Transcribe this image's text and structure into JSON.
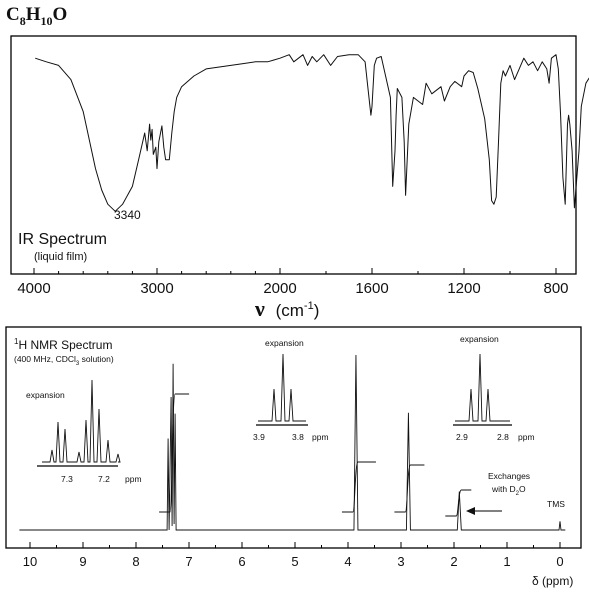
{
  "formula": {
    "base_c": "C",
    "n_c": "8",
    "base_h": "H",
    "n_h": "10",
    "base_o": "O"
  },
  "chart_data": [
    {
      "type": "line",
      "title": "IR Spectrum",
      "subtitle": "(liquid film)",
      "xlabel_symbol": "ν",
      "xlabel_unit": "(cm",
      "xlabel_exp": "-1",
      "xlabel_close": ")",
      "xlim": [
        4000,
        600
      ],
      "x_ticks": [
        4000,
        3000,
        2000,
        1600,
        1200,
        800
      ],
      "annotation": "3340",
      "grid": false,
      "x": [
        3990,
        3900,
        3800,
        3700,
        3600,
        3500,
        3450,
        3400,
        3340,
        3280,
        3200,
        3150,
        3100,
        3080,
        3060,
        3050,
        3040,
        3030,
        3010,
        3000,
        2985,
        2960,
        2945,
        2930,
        2900,
        2880,
        2860,
        2840,
        2800,
        2700,
        2600,
        2500,
        2400,
        2300,
        2200,
        2100,
        2050,
        2000,
        1960,
        1940,
        1900,
        1880,
        1860,
        1840,
        1810,
        1780,
        1750,
        1700,
        1660,
        1630,
        1620,
        1605,
        1600,
        1590,
        1580,
        1560,
        1520,
        1510,
        1500,
        1495,
        1490,
        1470,
        1460,
        1454,
        1445,
        1440,
        1420,
        1380,
        1365,
        1340,
        1300,
        1285,
        1260,
        1240,
        1210,
        1200,
        1180,
        1160,
        1140,
        1110,
        1090,
        1080,
        1070,
        1060,
        1050,
        1040,
        1030,
        1020,
        1000,
        980,
        960,
        940,
        920,
        900,
        880,
        860,
        840,
        830,
        820,
        800,
        790,
        780,
        770,
        760,
        750,
        745,
        740,
        730,
        720,
        700,
        690,
        670,
        650,
        620
      ],
      "y": [
        92,
        90,
        88,
        80,
        62,
        30,
        18,
        10,
        6,
        10,
        20,
        35,
        50,
        40,
        55,
        46,
        52,
        38,
        42,
        30,
        45,
        54,
        42,
        35,
        35,
        50,
        62,
        70,
        76,
        82,
        86,
        87,
        88,
        89,
        90,
        90,
        91,
        92,
        94,
        90,
        94,
        88,
        93,
        90,
        94,
        88,
        93,
        94,
        94,
        90,
        78,
        60,
        65,
        88,
        92,
        93,
        70,
        20,
        40,
        60,
        75,
        70,
        45,
        15,
        40,
        55,
        70,
        66,
        78,
        72,
        76,
        68,
        76,
        79,
        76,
        82,
        85,
        84,
        75,
        58,
        35,
        12,
        10,
        14,
        45,
        78,
        85,
        82,
        88,
        80,
        86,
        92,
        88,
        90,
        85,
        90,
        86,
        78,
        92,
        94,
        86,
        60,
        25,
        10,
        55,
        60,
        55,
        40,
        8,
        40,
        65,
        78,
        82,
        84
      ]
    },
    {
      "type": "line",
      "title": "H NMR Spectrum",
      "title_sup": "1",
      "subtitle": "(400 MHz, CDCl",
      "subtitle_sub": "3",
      "subtitle_end": " solution)",
      "xlabel": "δ (ppm)",
      "xlim": [
        10,
        0
      ],
      "x_ticks": [
        10,
        9,
        8,
        7,
        6,
        5,
        4,
        3,
        2,
        1,
        0
      ],
      "grid": false,
      "peaks": [
        {
          "ppm": 7.3,
          "height": 95,
          "integration": "5H"
        },
        {
          "ppm": 3.85,
          "height": 100,
          "integration": "2H"
        },
        {
          "ppm": 2.86,
          "height": 67,
          "integration": "2H"
        },
        {
          "ppm": 1.9,
          "height": 22,
          "integration": "1H"
        },
        {
          "ppm": 0.0,
          "height": 5,
          "integration": ""
        }
      ],
      "annotations": {
        "exchange_line1": "Exchanges",
        "exchange_line2": "with D",
        "exchange_sub": "2",
        "exchange_end": "O",
        "tms": "TMS"
      },
      "insets": [
        {
          "label": "expansion",
          "ticks": [
            "7.3",
            "7.2"
          ],
          "unit": "ppm",
          "pattern": "multiplet"
        },
        {
          "label": "expansion",
          "ticks": [
            "3.9",
            "3.8"
          ],
          "unit": "ppm",
          "pattern": "triplet"
        },
        {
          "label": "expansion",
          "ticks": [
            "2.9",
            "2.8"
          ],
          "unit": "ppm",
          "pattern": "triplet"
        }
      ]
    }
  ]
}
